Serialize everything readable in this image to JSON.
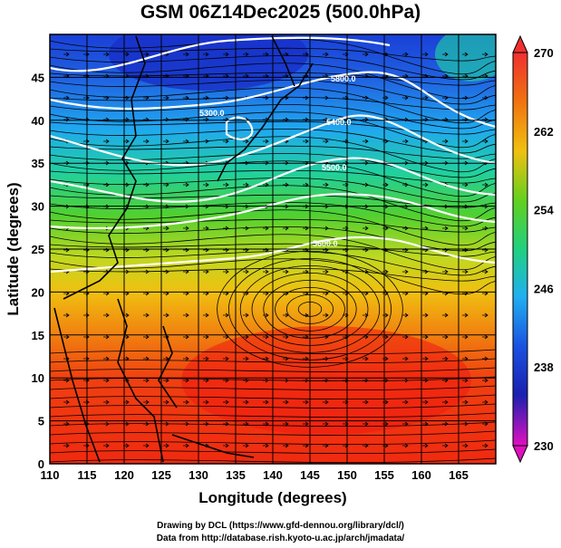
{
  "title": "GSM 06Z14Dec2025 (500.0hPa)",
  "xlabel": "Longitude (degrees)",
  "ylabel": "Latitude  (degrees)",
  "x_ticks": [
    "110",
    "115",
    "120",
    "125",
    "130",
    "135",
    "140",
    "145",
    "150",
    "155",
    "160",
    "165"
  ],
  "y_ticks": [
    "0",
    "5",
    "10",
    "15",
    "20",
    "25",
    "30",
    "35",
    "40",
    "45"
  ],
  "colorbar_ticks": [
    "270",
    "262",
    "254",
    "246",
    "238",
    "230"
  ],
  "contour_labels": [
    "5300.0",
    "5400.0",
    "5500.0",
    "5600.0",
    "5800.0"
  ],
  "credit_line1": "Drawing by DCL (https://www.gfd-dennou.org/library/dcl/)",
  "credit_line2": "Data from http://database.rish.kyoto-u.ac.jp/arch/jmadata/",
  "map_data": {
    "lon_range": [
      110,
      170
    ],
    "lat_range": [
      0,
      50
    ],
    "colorbar_range": [
      230,
      270
    ],
    "colors": {
      "very_cold": "#d000c0",
      "cold": "#1030d0",
      "cool": "#20a0f0",
      "mild": "#20d080",
      "warm": "#60d020",
      "warmer": "#f0d000",
      "hot": "#f07010",
      "hottest": "#f02010"
    }
  }
}
